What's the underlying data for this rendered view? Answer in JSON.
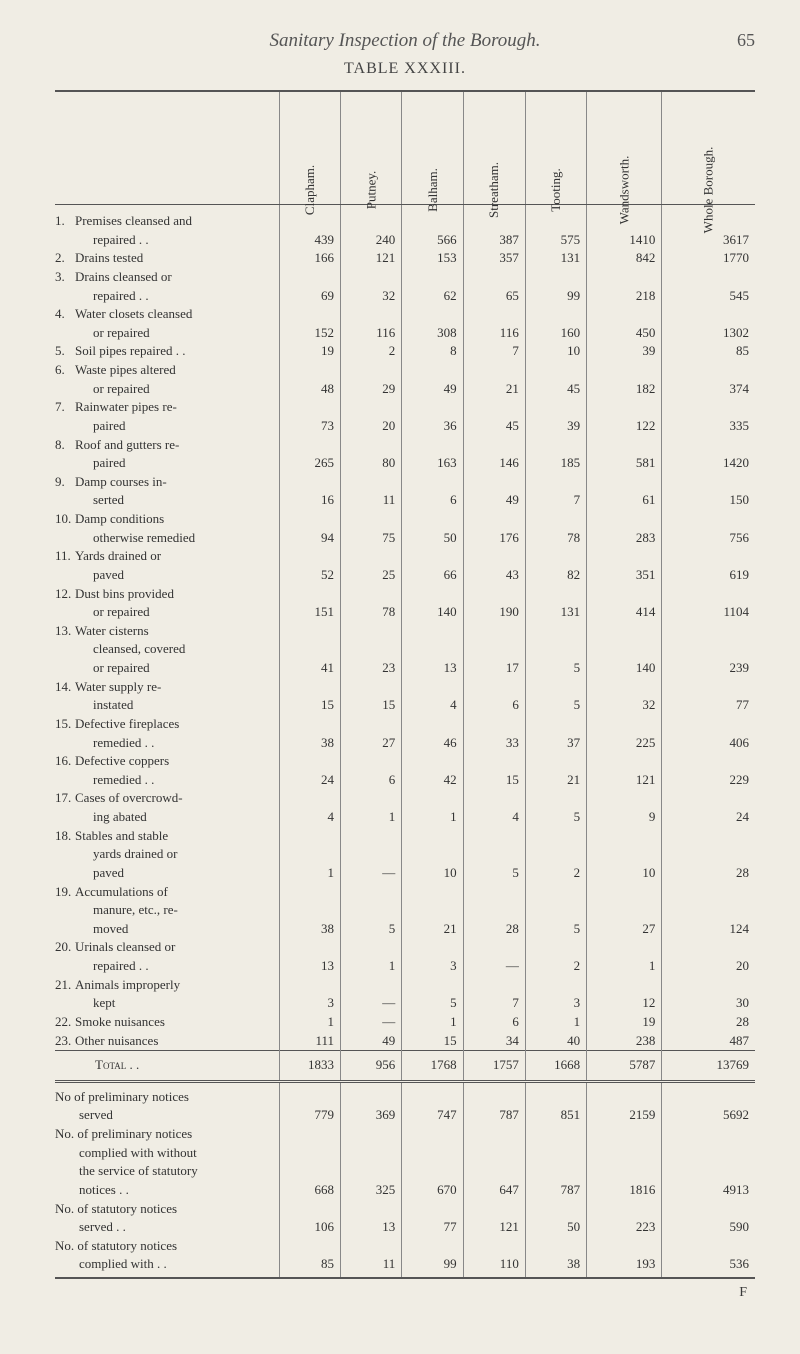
{
  "header": {
    "title": "Sanitary Inspection of the Borough.",
    "page_number": "65",
    "table_title": "TABLE XXXIII."
  },
  "columns": [
    "Clapham.",
    "Putney.",
    "Balham.",
    "Streatham.",
    "Tooting.",
    "Wandsworth.",
    "Whole Borough."
  ],
  "rows": [
    {
      "num": "1.",
      "label": "Premises cleansed and",
      "cont": "repaired   . .",
      "vals": [
        "439",
        "240",
        "566",
        "387",
        "575",
        "1410",
        "3617"
      ]
    },
    {
      "num": "2.",
      "label": "Drains tested",
      "vals": [
        "166",
        "121",
        "153",
        "357",
        "131",
        "842",
        "1770"
      ]
    },
    {
      "num": "3.",
      "label": "Drains cleansed or",
      "cont": "repaired   . .",
      "vals": [
        "69",
        "32",
        "62",
        "65",
        "99",
        "218",
        "545"
      ]
    },
    {
      "num": "4.",
      "label": "Water closets cleansed",
      "cont": "or repaired",
      "vals": [
        "152",
        "116",
        "308",
        "116",
        "160",
        "450",
        "1302"
      ]
    },
    {
      "num": "5.",
      "label": "Soil pipes repaired  . .",
      "vals": [
        "19",
        "2",
        "8",
        "7",
        "10",
        "39",
        "85"
      ]
    },
    {
      "num": "6.",
      "label": "Waste pipes altered",
      "cont": "or repaired",
      "vals": [
        "48",
        "29",
        "49",
        "21",
        "45",
        "182",
        "374"
      ]
    },
    {
      "num": "7.",
      "label": "Rainwater pipes re-",
      "cont": "paired",
      "vals": [
        "73",
        "20",
        "36",
        "45",
        "39",
        "122",
        "335"
      ]
    },
    {
      "num": "8.",
      "label": "Roof and gutters re-",
      "cont": "paired",
      "vals": [
        "265",
        "80",
        "163",
        "146",
        "185",
        "581",
        "1420"
      ]
    },
    {
      "num": "9.",
      "label": "Damp courses in-",
      "cont": "serted",
      "vals": [
        "16",
        "11",
        "6",
        "49",
        "7",
        "61",
        "150"
      ]
    },
    {
      "num": "10.",
      "label": "Damp conditions",
      "cont": "otherwise remedied",
      "vals": [
        "94",
        "75",
        "50",
        "176",
        "78",
        "283",
        "756"
      ]
    },
    {
      "num": "11.",
      "label": "Yards drained or",
      "cont": "paved",
      "vals": [
        "52",
        "25",
        "66",
        "43",
        "82",
        "351",
        "619"
      ]
    },
    {
      "num": "12.",
      "label": "Dust bins provided",
      "cont": "or repaired",
      "vals": [
        "151",
        "78",
        "140",
        "190",
        "131",
        "414",
        "1104"
      ]
    },
    {
      "num": "13.",
      "label": "Water cisterns",
      "cont": "cleansed, covered",
      "cont2": "or repaired",
      "vals": [
        "41",
        "23",
        "13",
        "17",
        "5",
        "140",
        "239"
      ]
    },
    {
      "num": "14.",
      "label": "Water supply re-",
      "cont": "instated",
      "vals": [
        "15",
        "15",
        "4",
        "6",
        "5",
        "32",
        "77"
      ]
    },
    {
      "num": "15.",
      "label": "Defective fireplaces",
      "cont": "remedied  . .",
      "vals": [
        "38",
        "27",
        "46",
        "33",
        "37",
        "225",
        "406"
      ]
    },
    {
      "num": "16.",
      "label": "Defective coppers",
      "cont": "remedied  . .",
      "vals": [
        "24",
        "6",
        "42",
        "15",
        "21",
        "121",
        "229"
      ]
    },
    {
      "num": "17.",
      "label": "Cases of overcrowd-",
      "cont": "ing abated",
      "vals": [
        "4",
        "1",
        "1",
        "4",
        "5",
        "9",
        "24"
      ]
    },
    {
      "num": "18.",
      "label": "Stables and stable",
      "cont": "yards drained or",
      "cont2": "paved",
      "vals": [
        "1",
        "—",
        "10",
        "5",
        "2",
        "10",
        "28"
      ]
    },
    {
      "num": "19.",
      "label": "Accumulations of",
      "cont": "manure, etc., re-",
      "cont2": "moved",
      "vals": [
        "38",
        "5",
        "21",
        "28",
        "5",
        "27",
        "124"
      ]
    },
    {
      "num": "20.",
      "label": "Urinals cleansed or",
      "cont": "repaired  . .",
      "vals": [
        "13",
        "1",
        "3",
        "—",
        "2",
        "1",
        "20"
      ]
    },
    {
      "num": "21.",
      "label": "Animals improperly",
      "cont": "kept",
      "vals": [
        "3",
        "—",
        "5",
        "7",
        "3",
        "12",
        "30"
      ]
    },
    {
      "num": "22.",
      "label": "Smoke nuisances",
      "vals": [
        "1",
        "—",
        "1",
        "6",
        "1",
        "19",
        "28"
      ]
    },
    {
      "num": "23.",
      "label": "Other nuisances",
      "vals": [
        "111",
        "49",
        "15",
        "34",
        "40",
        "238",
        "487"
      ]
    }
  ],
  "total": {
    "label": "Total . .",
    "vals": [
      "1833",
      "956",
      "1768",
      "1757",
      "1668",
      "5787",
      "13769"
    ]
  },
  "section2": [
    {
      "label": "No of preliminary notices",
      "cont": "served",
      "vals": [
        "779",
        "369",
        "747",
        "787",
        "851",
        "2159",
        "5692"
      ]
    },
    {
      "label": "No. of preliminary notices",
      "cont": "complied with without",
      "cont2": "the service of statutory",
      "cont3": "notices . .",
      "vals": [
        "668",
        "325",
        "670",
        "647",
        "787",
        "1816",
        "4913"
      ]
    },
    {
      "label": "No. of statutory notices",
      "cont": "served  . .",
      "vals": [
        "106",
        "13",
        "77",
        "121",
        "50",
        "223",
        "590"
      ]
    },
    {
      "label": "No. of statutory notices",
      "cont": "complied with . .",
      "vals": [
        "85",
        "11",
        "99",
        "110",
        "38",
        "193",
        "536"
      ]
    }
  ],
  "footer_mark": "F"
}
